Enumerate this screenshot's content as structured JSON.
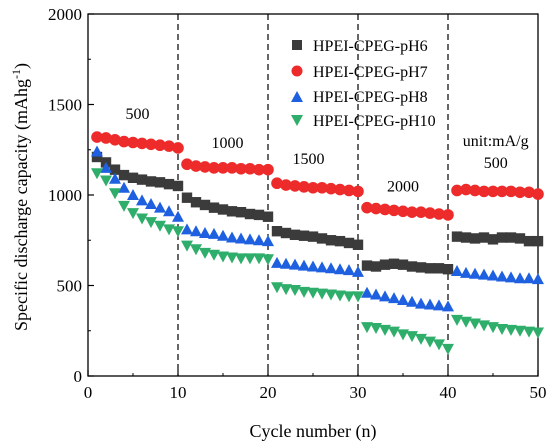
{
  "chart_data": {
    "type": "scatter",
    "title": "",
    "xlabel": "Cycle number (n)",
    "ylabel": "Specific discharge capacity (mAhg-1)",
    "ylabel_parts": {
      "main": "Specific discharge capacity (mAhg",
      "sup": "-1",
      "close": ")"
    },
    "xlim": [
      0,
      50
    ],
    "ylim": [
      0,
      2000
    ],
    "xticks": [
      0,
      10,
      20,
      30,
      40,
      50
    ],
    "yticks": [
      0,
      500,
      1000,
      1500,
      2000
    ],
    "grid": false,
    "legend_position": "top-right",
    "vlines": [
      10,
      20,
      30,
      40
    ],
    "annotations": [
      {
        "text": "500",
        "x": 5.5,
        "y": 1420
      },
      {
        "text": "1000",
        "x": 15.5,
        "y": 1260
      },
      {
        "text": "1500",
        "x": 24.5,
        "y": 1170
      },
      {
        "text": "2000",
        "x": 35,
        "y": 1020
      },
      {
        "text": "unit:mA/g",
        "x": 45.3,
        "y": 1270
      },
      {
        "text": "500",
        "x": 45.3,
        "y": 1150
      }
    ],
    "x": [
      1,
      2,
      3,
      4,
      5,
      6,
      7,
      8,
      9,
      10,
      11,
      12,
      13,
      14,
      15,
      16,
      17,
      18,
      19,
      20,
      21,
      22,
      23,
      24,
      25,
      26,
      27,
      28,
      29,
      30,
      31,
      32,
      33,
      34,
      35,
      36,
      37,
      38,
      39,
      40,
      41,
      42,
      43,
      44,
      45,
      46,
      47,
      48,
      49,
      50
    ],
    "series": [
      {
        "name": "HPEI-CPEG-pH6",
        "color": "#3b3b3b",
        "marker": "square",
        "values": [
          1210,
          1180,
          1140,
          1110,
          1095,
          1085,
          1075,
          1070,
          1060,
          1050,
          985,
          960,
          945,
          930,
          920,
          910,
          905,
          895,
          890,
          880,
          800,
          790,
          780,
          775,
          770,
          760,
          750,
          745,
          735,
          725,
          610,
          605,
          615,
          620,
          615,
          605,
          600,
          595,
          595,
          590,
          770,
          765,
          760,
          765,
          755,
          765,
          765,
          760,
          745,
          745
        ]
      },
      {
        "name": "HPEI-CPEG-pH7",
        "color": "#ee2b2b",
        "marker": "circle",
        "values": [
          1320,
          1315,
          1305,
          1295,
          1290,
          1285,
          1280,
          1275,
          1270,
          1260,
          1170,
          1160,
          1155,
          1150,
          1150,
          1150,
          1145,
          1145,
          1140,
          1140,
          1065,
          1055,
          1050,
          1045,
          1040,
          1040,
          1035,
          1030,
          1025,
          1020,
          930,
          925,
          920,
          915,
          910,
          905,
          905,
          900,
          895,
          890,
          1025,
          1030,
          1025,
          1020,
          1020,
          1020,
          1020,
          1015,
          1015,
          1005
        ]
      },
      {
        "name": "HPEI-CPEG-pH8",
        "color": "#1f60e0",
        "marker": "triangle-up",
        "values": [
          1240,
          1150,
          1090,
          1040,
          1000,
          970,
          950,
          930,
          910,
          880,
          810,
          800,
          790,
          785,
          775,
          765,
          760,
          755,
          750,
          745,
          625,
          620,
          615,
          610,
          605,
          600,
          595,
          590,
          585,
          575,
          460,
          450,
          440,
          430,
          420,
          410,
          400,
          395,
          390,
          385,
          580,
          570,
          565,
          560,
          555,
          550,
          545,
          540,
          540,
          535
        ]
      },
      {
        "name": "HPEI-CPEG-pH10",
        "color": "#2fae6b",
        "marker": "triangle-down",
        "values": [
          1120,
          1080,
          1010,
          940,
          900,
          870,
          850,
          830,
          810,
          800,
          720,
          700,
          680,
          670,
          660,
          655,
          650,
          650,
          650,
          645,
          490,
          480,
          475,
          465,
          460,
          455,
          450,
          445,
          440,
          440,
          270,
          265,
          255,
          245,
          230,
          220,
          205,
          190,
          175,
          150,
          310,
          300,
          290,
          280,
          270,
          260,
          255,
          250,
          245,
          240
        ]
      }
    ]
  }
}
